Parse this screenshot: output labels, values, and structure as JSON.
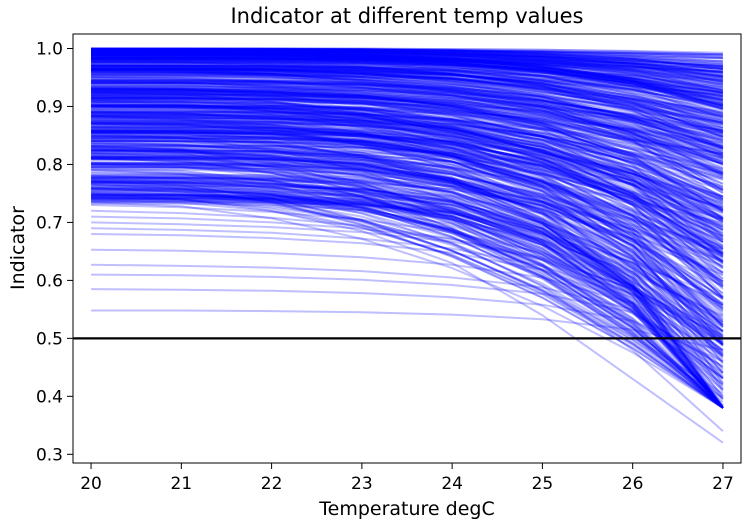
{
  "chart_data": {
    "type": "line",
    "title": "Indicator at different temp values",
    "xlabel": "Temperature degC",
    "ylabel": "Indicator",
    "xlim": [
      19.8,
      27.2
    ],
    "ylim": [
      0.285,
      1.025
    ],
    "xticks": [
      20,
      21,
      22,
      23,
      24,
      25,
      26,
      27
    ],
    "yticks": [
      0.3,
      0.4,
      0.5,
      0.6,
      0.7,
      0.8,
      0.9,
      1.0
    ],
    "x": [
      20,
      21,
      22,
      23,
      24,
      25,
      26,
      27
    ],
    "grid": false,
    "line_color": "#0000ff",
    "line_alpha": 0.25,
    "threshold": {
      "y": 0.5,
      "color": "#000000"
    },
    "series_count": 600,
    "series_note": "many overlapping curves, each decreasing from its value at 20 degC to its value at 27 degC",
    "series": [
      {
        "values": [
          1.0,
          1.0,
          1.0,
          1.0,
          0.999,
          0.998,
          0.995,
          0.99
        ]
      },
      {
        "values": [
          0.99,
          0.99,
          0.99,
          0.988,
          0.985,
          0.98,
          0.97,
          0.95
        ]
      },
      {
        "values": [
          0.97,
          0.97,
          0.968,
          0.965,
          0.96,
          0.95,
          0.935,
          0.91
        ]
      },
      {
        "values": [
          0.95,
          0.948,
          0.945,
          0.94,
          0.93,
          0.915,
          0.89,
          0.85
        ]
      },
      {
        "values": [
          0.93,
          0.928,
          0.925,
          0.918,
          0.905,
          0.885,
          0.855,
          0.81
        ]
      },
      {
        "values": [
          0.91,
          0.908,
          0.903,
          0.895,
          0.88,
          0.855,
          0.82,
          0.76
        ]
      },
      {
        "values": [
          0.89,
          0.887,
          0.882,
          0.872,
          0.855,
          0.83,
          0.79,
          0.72
        ]
      },
      {
        "values": [
          0.87,
          0.867,
          0.86,
          0.848,
          0.83,
          0.8,
          0.75,
          0.67
        ]
      },
      {
        "values": [
          0.85,
          0.845,
          0.838,
          0.825,
          0.805,
          0.77,
          0.71,
          0.62
        ]
      },
      {
        "values": [
          0.83,
          0.825,
          0.816,
          0.8,
          0.775,
          0.735,
          0.67,
          0.57
        ]
      },
      {
        "values": [
          0.81,
          0.806,
          0.797,
          0.78,
          0.752,
          0.705,
          0.63,
          0.52
        ]
      },
      {
        "values": [
          0.79,
          0.786,
          0.777,
          0.76,
          0.73,
          0.68,
          0.6,
          0.48
        ]
      },
      {
        "values": [
          0.775,
          0.77,
          0.76,
          0.74,
          0.705,
          0.645,
          0.555,
          0.43
        ]
      },
      {
        "values": [
          0.76,
          0.752,
          0.737,
          0.71,
          0.665,
          0.59,
          0.48,
          0.34
        ]
      },
      {
        "values": [
          0.75,
          0.74,
          0.72,
          0.685,
          0.63,
          0.54,
          0.43,
          0.32
        ]
      },
      {
        "values": [
          0.73,
          0.726,
          0.718,
          0.705,
          0.683,
          0.648,
          0.59,
          0.5
        ]
      },
      {
        "values": [
          0.72,
          0.716,
          0.708,
          0.694,
          0.672,
          0.635,
          0.575,
          0.47
        ]
      },
      {
        "values": [
          0.71,
          0.707,
          0.7,
          0.689,
          0.671,
          0.64,
          0.585,
          0.49
        ]
      },
      {
        "values": [
          0.7,
          0.697,
          0.692,
          0.683,
          0.667,
          0.638,
          0.585,
          0.48
        ]
      },
      {
        "values": [
          0.69,
          0.687,
          0.682,
          0.672,
          0.655,
          0.625,
          0.57,
          0.46
        ]
      },
      {
        "values": [
          0.68,
          0.678,
          0.673,
          0.664,
          0.648,
          0.618,
          0.56,
          0.45
        ]
      },
      {
        "values": [
          0.653,
          0.651,
          0.647,
          0.64,
          0.627,
          0.605,
          0.56,
          0.42
        ]
      },
      {
        "values": [
          0.627,
          0.625,
          0.622,
          0.616,
          0.605,
          0.588,
          0.55,
          0.44
        ]
      },
      {
        "values": [
          0.61,
          0.609,
          0.606,
          0.601,
          0.592,
          0.577,
          0.545,
          0.45
        ]
      },
      {
        "values": [
          0.585,
          0.584,
          0.582,
          0.578,
          0.571,
          0.558,
          0.53,
          0.46
        ]
      },
      {
        "values": [
          0.548,
          0.548,
          0.547,
          0.545,
          0.541,
          0.533,
          0.515,
          0.48
        ]
      }
    ]
  }
}
